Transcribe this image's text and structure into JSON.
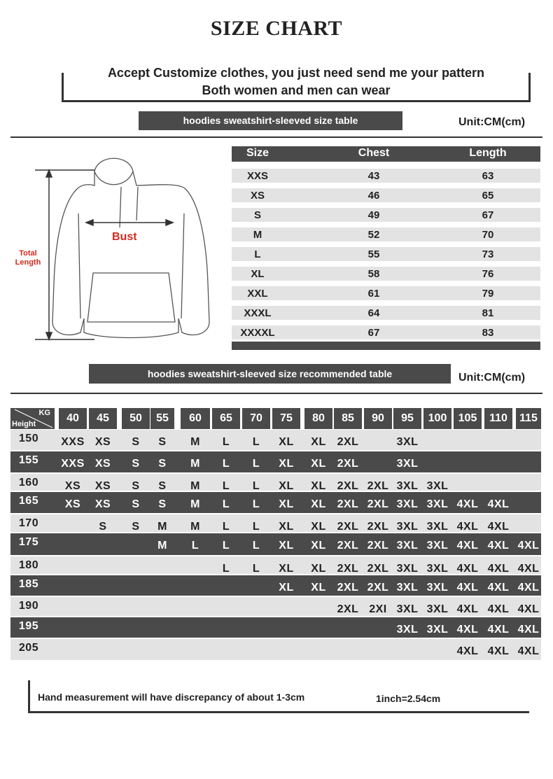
{
  "title": "SIZE CHART",
  "banner": {
    "line1": "Accept Customize clothes, you just need send me your pattern",
    "line2": "Both women and men can wear"
  },
  "table1": {
    "heading": "hoodies sweatshirt-sleeved size  table",
    "unit": "Unit:CM(cm)",
    "columns": [
      "Size",
      "Chest",
      "Length"
    ],
    "rows": [
      [
        "XXS",
        "43",
        "63"
      ],
      [
        "XS",
        "46",
        "65"
      ],
      [
        "S",
        "49",
        "67"
      ],
      [
        "M",
        "52",
        "70"
      ],
      [
        "L",
        "55",
        "73"
      ],
      [
        "XL",
        "58",
        "76"
      ],
      [
        "XXL",
        "61",
        "79"
      ],
      [
        "XXXL",
        "64",
        "81"
      ],
      [
        "XXXXL",
        "67",
        "83"
      ]
    ]
  },
  "diagram": {
    "total_length": "Total\nLength",
    "bust": "Bust",
    "accent": "#d42a1e"
  },
  "table2": {
    "heading": "hoodies sweatshirt-sleeved size recommended table",
    "unit": "Unit:CM(cm)",
    "corner_top": "KG",
    "corner_bottom": "Height",
    "weights": [
      "40",
      "45",
      "50",
      "55",
      "60",
      "65",
      "70",
      "75",
      "80",
      "85",
      "90",
      "95",
      "100",
      "105",
      "110",
      "115"
    ],
    "rows": [
      {
        "height": "150",
        "sizes": [
          "XXS",
          "XS",
          "S",
          "S",
          "M",
          "L",
          "L",
          "XL",
          "XL",
          "2XL",
          "",
          "3XL",
          "",
          "",
          "",
          ""
        ]
      },
      {
        "height": "155",
        "sizes": [
          "XXS",
          "XS",
          "S",
          "S",
          "M",
          "L",
          "L",
          "XL",
          "XL",
          "2XL",
          "",
          "3XL",
          "",
          "",
          "",
          ""
        ]
      },
      {
        "height": "160",
        "sizes": [
          "XS",
          "XS",
          "S",
          "S",
          "M",
          "L",
          "L",
          "XL",
          "XL",
          "2XL",
          "2XL",
          "3XL",
          "3XL",
          "",
          "",
          ""
        ]
      },
      {
        "height": "165",
        "sizes": [
          "XS",
          "XS",
          "S",
          "S",
          "M",
          "L",
          "L",
          "XL",
          "XL",
          "2XL",
          "2XL",
          "3XL",
          "3XL",
          "4XL",
          "4XL",
          ""
        ]
      },
      {
        "height": "170",
        "sizes": [
          "",
          "S",
          "S",
          "M",
          "M",
          "L",
          "L",
          "XL",
          "XL",
          "2XL",
          "2XL",
          "3XL",
          "3XL",
          "4XL",
          "4XL",
          ""
        ]
      },
      {
        "height": "175",
        "sizes": [
          "",
          "",
          "",
          "M",
          "L",
          "L",
          "L",
          "XL",
          "XL",
          "2XL",
          "2XL",
          "3XL",
          "3XL",
          "4XL",
          "4XL",
          "4XL"
        ]
      },
      {
        "height": "180",
        "sizes": [
          "",
          "",
          "",
          "",
          "",
          "L",
          "L",
          "XL",
          "XL",
          "2XL",
          "2XL",
          "3XL",
          "3XL",
          "4XL",
          "4XL",
          "4XL"
        ]
      },
      {
        "height": "185",
        "sizes": [
          "",
          "",
          "",
          "",
          "",
          "",
          "",
          "XL",
          "XL",
          "2XL",
          "2XL",
          "3XL",
          "3XL",
          "4XL",
          "4XL",
          "4XL"
        ]
      },
      {
        "height": "190",
        "sizes": [
          "",
          "",
          "",
          "",
          "",
          "",
          "",
          "",
          "",
          "2XL",
          "2XI",
          "3XL",
          "3XL",
          "4XL",
          "4XL",
          "4XL"
        ]
      },
      {
        "height": "195",
        "sizes": [
          "",
          "",
          "",
          "",
          "",
          "",
          "",
          "",
          "",
          "",
          "",
          "3XL",
          "3XL",
          "4XL",
          "4XL",
          "4XL"
        ]
      },
      {
        "height": "205",
        "sizes": [
          "",
          "",
          "",
          "",
          "",
          "",
          "",
          "",
          "",
          "",
          "",
          "",
          "",
          "4XL",
          "4XL",
          "4XL"
        ]
      }
    ]
  },
  "footer": {
    "note": "Hand measurement will have discrepancy of about  1-3cm",
    "conversion": "1inch=2.54cm"
  }
}
